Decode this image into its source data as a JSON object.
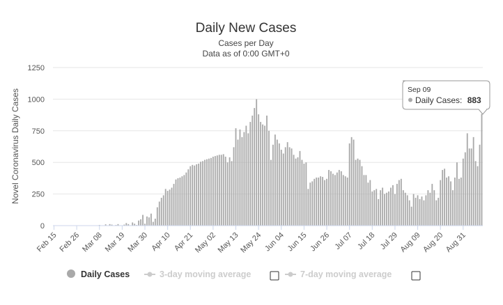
{
  "chart_data": {
    "type": "bar",
    "title": "Daily New Cases",
    "subtitle_lines": [
      "Cases per Day",
      "Data as of 0:00 GMT+0"
    ],
    "ylabel": "Novel Coronavirus Daily Cases",
    "ylim": [
      0,
      1250
    ],
    "yticks": [
      0,
      250,
      500,
      750,
      1000,
      1250
    ],
    "ytick_labels": [
      "0",
      "250",
      "500",
      "750",
      "1000",
      "1250"
    ],
    "xtick_labels": [
      "Feb 15",
      "Feb 26",
      "Mar 08",
      "Mar 19",
      "Mar 30",
      "Apr 10",
      "Apr 21",
      "May 02",
      "May 13",
      "May 24",
      "Jun 04",
      "Jun 15",
      "Jun 26",
      "Jul 07",
      "Jul 18",
      "Jul 29",
      "Aug 09",
      "Aug 20",
      "Aug 31"
    ],
    "xtick_step_days": 11,
    "grid": true,
    "series": [
      {
        "name": "Daily Cases",
        "color": "#a9a9a9",
        "start_date": "Feb 15",
        "values": [
          0,
          0,
          0,
          0,
          0,
          0,
          0,
          0,
          0,
          0,
          0,
          0,
          0,
          0,
          0,
          0,
          0,
          0,
          0,
          0,
          0,
          0,
          5,
          0,
          0,
          10,
          0,
          12,
          8,
          0,
          5,
          12,
          3,
          0,
          8,
          20,
          12,
          3,
          25,
          15,
          5,
          40,
          50,
          85,
          15,
          72,
          65,
          95,
          30,
          55,
          145,
          190,
          220,
          240,
          290,
          275,
          285,
          300,
          330,
          365,
          375,
          380,
          390,
          400,
          420,
          445,
          470,
          480,
          475,
          485,
          490,
          505,
          510,
          520,
          525,
          530,
          535,
          545,
          550,
          555,
          560,
          560,
          565,
          545,
          500,
          540,
          510,
          620,
          770,
          680,
          760,
          700,
          740,
          790,
          730,
          820,
          870,
          930,
          1000,
          880,
          820,
          800,
          790,
          870,
          750,
          520,
          640,
          720,
          680,
          650,
          600,
          570,
          620,
          660,
          620,
          610,
          560,
          530,
          540,
          590,
          520,
          490,
          500,
          290,
          340,
          350,
          370,
          380,
          380,
          390,
          385,
          360,
          370,
          440,
          430,
          410,
          400,
          420,
          440,
          430,
          400,
          390,
          380,
          650,
          700,
          680,
          520,
          530,
          520,
          470,
          400,
          400,
          340,
          360,
          270,
          280,
          290,
          210,
          280,
          300,
          250,
          260,
          270,
          300,
          320,
          250,
          330,
          360,
          370,
          280,
          260,
          240,
          200,
          150,
          250,
          220,
          240,
          210,
          230,
          200,
          240,
          280,
          260,
          330,
          280,
          200,
          220,
          360,
          440,
          450,
          380,
          390,
          350,
          280,
          380,
          500,
          370,
          380,
          530,
          580,
          730,
          610,
          610,
          700,
          510,
          470,
          640,
          883
        ]
      }
    ],
    "tooltip": {
      "date": "Sep 09",
      "series_name": "Daily Cases:",
      "value": "883"
    },
    "legend": {
      "items": [
        {
          "label": "Daily Cases",
          "active": true
        },
        {
          "label": "3-day moving average",
          "active": false
        },
        {
          "label": "7-day moving average",
          "active": false
        }
      ]
    },
    "colors": {
      "bar": "#a9a9a9",
      "legend_active": "#333333",
      "legend_inactive": "#cccccc",
      "grid": "#e6e6e6"
    }
  }
}
